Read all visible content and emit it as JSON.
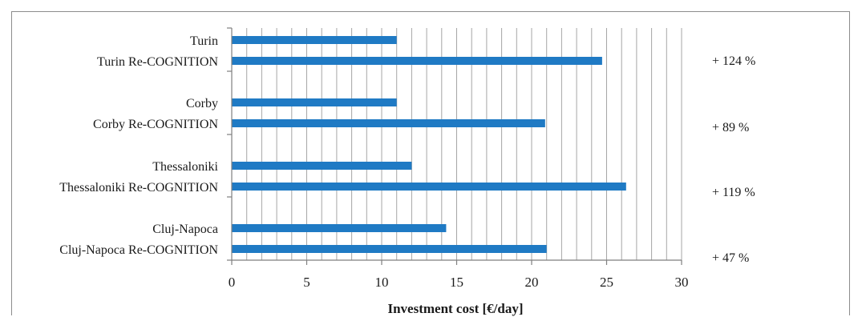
{
  "chart_data": {
    "type": "bar",
    "orientation": "horizontal",
    "title": "",
    "xlabel": "Investment cost [€/day]",
    "ylabel": "",
    "xlim": [
      0,
      30
    ],
    "x_ticks": [
      "0",
      "5",
      "10",
      "15",
      "20",
      "25",
      "30"
    ],
    "grid": "vertical minor gridlines",
    "legend": "none",
    "bar_color": "#1f7ac4",
    "categories": [
      "Turin",
      "Turin Re-COGNITION",
      "Corby",
      "Corby Re-COGNITION",
      "Thessaloniki",
      "Thessaloniki Re-COGNITION",
      "Cluj-Napoca",
      "Cluj-Napoca Re-COGNITION"
    ],
    "values": [
      11.0,
      24.7,
      11.0,
      20.9,
      12.0,
      26.3,
      14.3,
      21.0
    ],
    "annotations": [
      "+ 124 %",
      "+ 89 %",
      "+ 119 %",
      "+ 47 %"
    ]
  }
}
